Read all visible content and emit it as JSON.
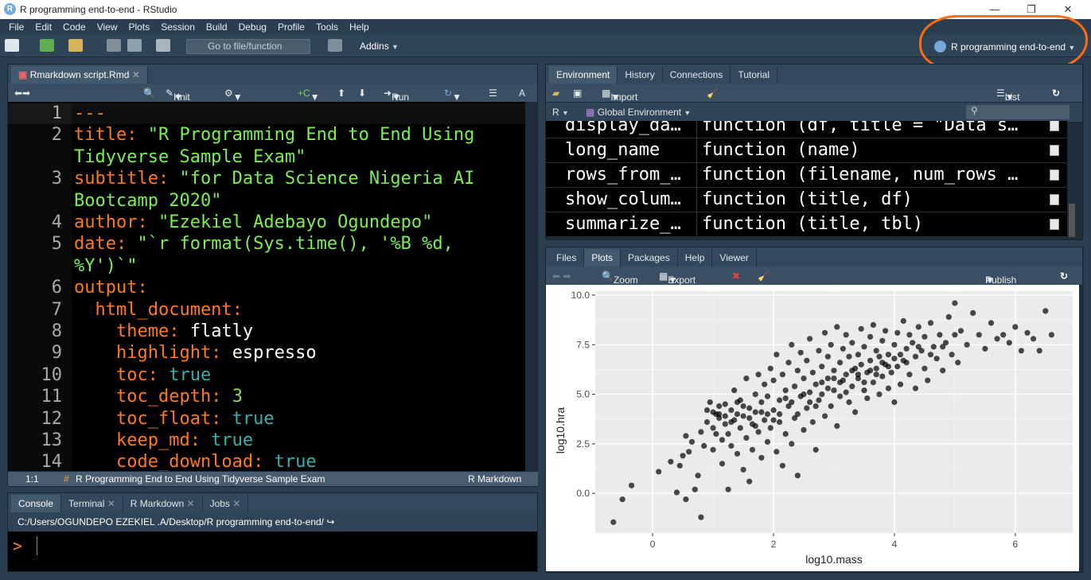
{
  "window": {
    "title": "R programming end-to-end - RStudio",
    "min": "—",
    "max": "❐",
    "close": "✕"
  },
  "menu": [
    "File",
    "Edit",
    "Code",
    "View",
    "Plots",
    "Session",
    "Build",
    "Debug",
    "Profile",
    "Tools",
    "Help"
  ],
  "toolbar": {
    "goto_placeholder": "Go to file/function",
    "addins": "Addins",
    "project": "R programming end-to-end"
  },
  "editor": {
    "tab": "Rmarkdown script.Rmd",
    "knit": "Knit",
    "run": "Run",
    "lines": [
      {
        "n": "1",
        "parts": [
          {
            "c": "k",
            "t": "---"
          }
        ]
      },
      {
        "n": "2",
        "parts": [
          {
            "c": "k",
            "t": "title: "
          },
          {
            "c": "s",
            "t": "\"R Programming End to End Using"
          }
        ]
      },
      {
        "n": "",
        "parts": [
          {
            "c": "s",
            "t": "Tidyverse Sample Exam\""
          }
        ]
      },
      {
        "n": "3",
        "parts": [
          {
            "c": "k",
            "t": "subtitle: "
          },
          {
            "c": "s",
            "t": "\"for Data Science Nigeria AI"
          }
        ]
      },
      {
        "n": "",
        "parts": [
          {
            "c": "s",
            "t": "Bootcamp 2020\""
          }
        ]
      },
      {
        "n": "4",
        "parts": [
          {
            "c": "k",
            "t": "author: "
          },
          {
            "c": "s",
            "t": "\"Ezekiel Adebayo Ogundepo\""
          }
        ]
      },
      {
        "n": "5",
        "parts": [
          {
            "c": "k",
            "t": "date: "
          },
          {
            "c": "s",
            "t": "\"`r format(Sys.time(), '%B %d,"
          }
        ]
      },
      {
        "n": "",
        "parts": [
          {
            "c": "s",
            "t": "%Y')`\""
          }
        ]
      },
      {
        "n": "6",
        "parts": [
          {
            "c": "k",
            "t": "output:"
          }
        ]
      },
      {
        "n": "7",
        "parts": [
          {
            "c": "k",
            "t": "  html_document:"
          }
        ]
      },
      {
        "n": "8",
        "parts": [
          {
            "c": "k",
            "t": "    theme: "
          },
          {
            "c": "w",
            "t": "flatly"
          }
        ]
      },
      {
        "n": "9",
        "parts": [
          {
            "c": "k",
            "t": "    highlight: "
          },
          {
            "c": "w",
            "t": "espresso"
          }
        ]
      },
      {
        "n": "10",
        "parts": [
          {
            "c": "k",
            "t": "    toc: "
          },
          {
            "c": "t",
            "t": "true"
          }
        ]
      },
      {
        "n": "11",
        "parts": [
          {
            "c": "k",
            "t": "    toc_depth: "
          },
          {
            "c": "n",
            "t": "3"
          }
        ]
      },
      {
        "n": "12",
        "parts": [
          {
            "c": "k",
            "t": "    toc_float: "
          },
          {
            "c": "t",
            "t": "true"
          }
        ]
      },
      {
        "n": "13",
        "parts": [
          {
            "c": "k",
            "t": "    keep_md: "
          },
          {
            "c": "t",
            "t": "true"
          }
        ]
      },
      {
        "n": "14",
        "parts": [
          {
            "c": "k",
            "t": "    code_download: "
          },
          {
            "c": "t",
            "t": "true"
          }
        ]
      }
    ],
    "status": {
      "pos": "1:1",
      "section": "R Programming End to End Using Tidyverse Sample Exam",
      "mode": "R Markdown"
    }
  },
  "console": {
    "tabs": [
      "Console",
      "Terminal",
      "R Markdown",
      "Jobs"
    ],
    "path": "C:/Users/OGUNDEPO EZEKIEL .A/Desktop/R programming end-to-end/",
    "prompt": ">"
  },
  "environment": {
    "tabs": [
      "Environment",
      "History",
      "Connections",
      "Tutorial"
    ],
    "import": "Import Dataset",
    "list": "List",
    "lang": "R",
    "scope": "Global Environment",
    "rows": [
      {
        "name": "display_da…",
        "value": "function (df, title = \"Data s…"
      },
      {
        "name": "long_name",
        "value": "function (name)"
      },
      {
        "name": "rows_from_…",
        "value": "function (filename, num_rows …"
      },
      {
        "name": "show_colum…",
        "value": "function (title, df)"
      },
      {
        "name": "summarize_…",
        "value": "function (title, tbl)"
      }
    ]
  },
  "plotspane": {
    "tabs": [
      "Files",
      "Plots",
      "Packages",
      "Help",
      "Viewer"
    ],
    "zoom": "Zoom",
    "export": "Export",
    "publish": "Publish"
  },
  "chart_data": {
    "type": "scatter",
    "xlabel": "log10.mass",
    "ylabel": "log10.hra",
    "xlim": [
      -0.95,
      6.95
    ],
    "ylim": [
      -2.0,
      10.2
    ],
    "xticks": [
      0,
      2,
      4,
      6
    ],
    "xtick_labels": [
      "0",
      "2",
      "4",
      "6"
    ],
    "yticks": [
      0,
      2.5,
      5,
      7.5,
      10
    ],
    "ytick_labels": [
      "0.0",
      "2.5",
      "5.0",
      "7.5",
      "10.0"
    ],
    "grid": true,
    "point_color": "#000000",
    "background": "#ebebeb",
    "points": [
      [
        -0.65,
        -1.45
      ],
      [
        -0.5,
        -0.3
      ],
      [
        -0.35,
        0.4
      ],
      [
        0.1,
        1.1
      ],
      [
        0.3,
        1.6
      ],
      [
        0.4,
        0.05
      ],
      [
        0.5,
        1.9
      ],
      [
        0.45,
        1.4
      ],
      [
        0.55,
        -0.3
      ],
      [
        0.6,
        2.1
      ],
      [
        0.65,
        2.6
      ],
      [
        0.55,
        2.9
      ],
      [
        0.7,
        0.2
      ],
      [
        0.75,
        0.9
      ],
      [
        0.8,
        -1.2
      ],
      [
        0.8,
        3.1
      ],
      [
        0.85,
        2.4
      ],
      [
        0.9,
        4.2
      ],
      [
        0.9,
        3.6
      ],
      [
        0.95,
        4.6
      ],
      [
        1.0,
        3.3
      ],
      [
        1.0,
        2.2
      ],
      [
        1.05,
        4.0
      ],
      [
        1.05,
        3.0
      ],
      [
        1.1,
        4.4
      ],
      [
        1.1,
        3.8
      ],
      [
        1.15,
        2.7
      ],
      [
        1.15,
        1.5
      ],
      [
        1.2,
        4.5
      ],
      [
        1.2,
        3.5
      ],
      [
        1.25,
        0.2
      ],
      [
        1.25,
        3.0
      ],
      [
        1.3,
        4.2
      ],
      [
        1.3,
        2.4
      ],
      [
        1.35,
        3.7
      ],
      [
        1.35,
        5.2
      ],
      [
        1.4,
        4.0
      ],
      [
        1.4,
        2.0
      ],
      [
        1.45,
        3.3
      ],
      [
        1.45,
        4.7
      ],
      [
        1.5,
        1.2
      ],
      [
        1.5,
        3.9
      ],
      [
        1.55,
        2.8
      ],
      [
        1.55,
        5.8
      ],
      [
        1.6,
        4.3
      ],
      [
        1.6,
        0.6
      ],
      [
        1.65,
        3.5
      ],
      [
        1.65,
        2.2
      ],
      [
        1.7,
        5.0
      ],
      [
        1.7,
        4.1
      ],
      [
        1.75,
        3.1
      ],
      [
        1.75,
        6.0
      ],
      [
        1.8,
        4.6
      ],
      [
        1.8,
        1.8
      ],
      [
        1.85,
        3.7
      ],
      [
        1.85,
        5.5
      ],
      [
        1.9,
        2.6
      ],
      [
        1.9,
        4.9
      ],
      [
        1.95,
        6.3
      ],
      [
        1.95,
        3.3
      ],
      [
        2.0,
        4.2
      ],
      [
        2.0,
        5.7
      ],
      [
        2.05,
        2.1
      ],
      [
        2.05,
        7.0
      ],
      [
        2.1,
        4.7
      ],
      [
        2.1,
        3.6
      ],
      [
        2.15,
        6.0
      ],
      [
        2.15,
        1.4
      ],
      [
        2.2,
        5.2
      ],
      [
        2.2,
        3.0
      ],
      [
        2.25,
        6.6
      ],
      [
        2.25,
        4.4
      ],
      [
        2.3,
        7.5
      ],
      [
        2.3,
        2.5
      ],
      [
        2.35,
        5.4
      ],
      [
        2.35,
        3.8
      ],
      [
        2.4,
        6.2
      ],
      [
        2.4,
        0.9
      ],
      [
        2.45,
        4.9
      ],
      [
        2.45,
        7.1
      ],
      [
        2.5,
        5.8
      ],
      [
        2.5,
        3.2
      ],
      [
        2.55,
        6.7
      ],
      [
        2.55,
        4.3
      ],
      [
        2.6,
        5.1
      ],
      [
        2.6,
        7.8
      ],
      [
        2.65,
        3.6
      ],
      [
        2.65,
        6.1
      ],
      [
        2.7,
        5.5
      ],
      [
        2.7,
        2.2
      ],
      [
        2.75,
        7.2
      ],
      [
        2.75,
        4.7
      ],
      [
        2.8,
        6.4
      ],
      [
        2.8,
        5.0
      ],
      [
        2.85,
        8.1
      ],
      [
        2.85,
        3.9
      ],
      [
        2.9,
        5.8
      ],
      [
        2.9,
        6.9
      ],
      [
        2.95,
        4.4
      ],
      [
        2.95,
        7.5
      ],
      [
        3.0,
        6.2
      ],
      [
        3.0,
        5.2
      ],
      [
        3.05,
        8.4
      ],
      [
        3.05,
        3.4
      ],
      [
        3.1,
        6.6
      ],
      [
        3.1,
        4.9
      ],
      [
        3.15,
        7.3
      ],
      [
        3.15,
        5.7
      ],
      [
        3.2,
        6.0
      ],
      [
        3.2,
        8.0
      ],
      [
        3.25,
        4.6
      ],
      [
        3.25,
        6.9
      ],
      [
        3.3,
        5.4
      ],
      [
        3.3,
        7.6
      ],
      [
        3.35,
        6.3
      ],
      [
        3.35,
        4.1
      ],
      [
        3.4,
        7.0
      ],
      [
        3.4,
        5.8
      ],
      [
        3.45,
        8.3
      ],
      [
        3.45,
        6.5
      ],
      [
        3.5,
        5.2
      ],
      [
        3.5,
        7.4
      ],
      [
        3.55,
        6.1
      ],
      [
        3.55,
        4.8
      ],
      [
        3.6,
        7.9
      ],
      [
        3.6,
        6.7
      ],
      [
        3.65,
        5.6
      ],
      [
        3.65,
        8.5
      ],
      [
        3.7,
        6.3
      ],
      [
        3.7,
        7.2
      ],
      [
        3.75,
        5.0
      ],
      [
        3.75,
        6.9
      ],
      [
        3.8,
        7.7
      ],
      [
        3.8,
        5.9
      ],
      [
        3.85,
        6.5
      ],
      [
        3.85,
        8.2
      ],
      [
        3.9,
        7.0
      ],
      [
        3.9,
        5.3
      ],
      [
        3.95,
        6.1
      ],
      [
        4.0,
        7.5
      ],
      [
        4.0,
        4.6
      ],
      [
        4.05,
        8.1
      ],
      [
        4.05,
        6.4
      ],
      [
        4.1,
        7.0
      ],
      [
        4.1,
        5.5
      ],
      [
        4.15,
        8.7
      ],
      [
        4.15,
        6.7
      ],
      [
        4.2,
        7.3
      ],
      [
        4.25,
        6.0
      ],
      [
        4.25,
        8.0
      ],
      [
        4.3,
        7.6
      ],
      [
        4.35,
        5.3
      ],
      [
        4.35,
        6.9
      ],
      [
        4.4,
        8.4
      ],
      [
        4.45,
        7.2
      ],
      [
        4.5,
        6.3
      ],
      [
        4.5,
        7.9
      ],
      [
        4.55,
        5.7
      ],
      [
        4.6,
        8.6
      ],
      [
        4.65,
        7.4
      ],
      [
        4.7,
        6.8
      ],
      [
        4.75,
        8.0
      ],
      [
        4.8,
        6.2
      ],
      [
        4.85,
        7.6
      ],
      [
        4.9,
        8.9
      ],
      [
        4.95,
        7.0
      ],
      [
        5.0,
        9.6
      ],
      [
        5.05,
        6.6
      ],
      [
        5.1,
        8.2
      ],
      [
        5.2,
        7.5
      ],
      [
        5.3,
        9.1
      ],
      [
        5.4,
        8.0
      ],
      [
        5.5,
        7.3
      ],
      [
        5.6,
        8.6
      ],
      [
        5.7,
        7.8
      ],
      [
        5.8,
        8.0
      ],
      [
        5.9,
        7.6
      ],
      [
        6.0,
        8.4
      ],
      [
        6.1,
        7.2
      ],
      [
        6.2,
        8.1
      ],
      [
        6.3,
        7.8
      ],
      [
        6.4,
        7.2
      ],
      [
        6.5,
        9.2
      ],
      [
        6.6,
        8.0
      ],
      [
        1.0,
        4.1
      ],
      [
        1.1,
        4.0
      ],
      [
        1.2,
        3.9
      ],
      [
        1.3,
        3.6
      ],
      [
        1.4,
        4.6
      ],
      [
        1.5,
        4.4
      ],
      [
        1.6,
        3.8
      ],
      [
        1.7,
        3.4
      ],
      [
        1.8,
        4.1
      ],
      [
        1.9,
        4.0
      ],
      [
        2.0,
        3.7
      ],
      [
        2.1,
        4.0
      ],
      [
        2.2,
        4.8
      ],
      [
        2.3,
        4.6
      ],
      [
        2.4,
        4.0
      ],
      [
        2.5,
        5.0
      ],
      [
        2.6,
        4.6
      ],
      [
        2.7,
        4.4
      ],
      [
        2.8,
        5.6
      ],
      [
        2.9,
        5.3
      ],
      [
        3.0,
        5.8
      ],
      [
        3.1,
        5.6
      ],
      [
        3.2,
        5.1
      ],
      [
        3.3,
        6.2
      ],
      [
        3.4,
        6.0
      ],
      [
        3.5,
        5.6
      ],
      [
        3.6,
        6.2
      ],
      [
        3.7,
        6.0
      ],
      [
        3.8,
        6.6
      ],
      [
        3.9,
        6.4
      ],
      [
        4.0,
        6.8
      ],
      [
        4.2,
        6.6
      ],
      [
        4.4,
        7.4
      ],
      [
        4.6,
        7.0
      ],
      [
        4.8,
        7.4
      ],
      [
        5.0,
        8.0
      ]
    ]
  }
}
